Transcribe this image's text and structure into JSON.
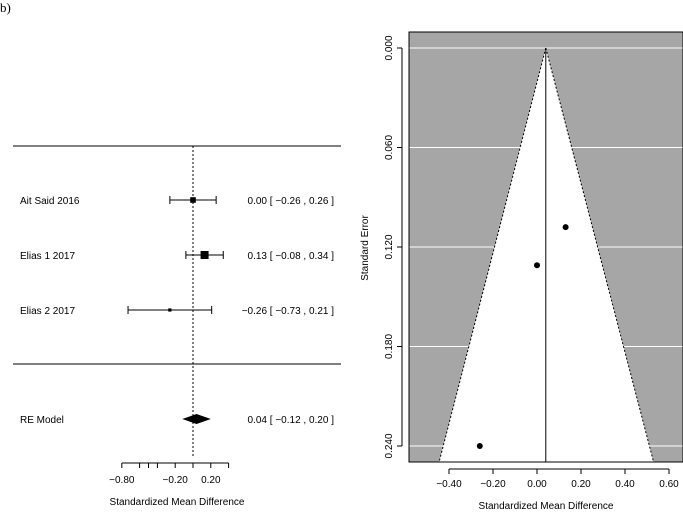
{
  "panel_label": "b)",
  "chart_data": [
    {
      "type": "forest",
      "xlabel": "Standardized Mean Difference",
      "xticks": [
        "−0.80",
        "",
        "",
        "",
        "−0.20",
        "",
        "0.20",
        ""
      ],
      "xtick_values": [
        -0.8,
        -0.6,
        -0.5,
        -0.4,
        -0.2,
        0.0,
        0.2,
        0.3
      ],
      "reference_line": 0.0,
      "studies": [
        {
          "label": "Ait Said  2016",
          "estimate": 0.0,
          "ci": [
            -0.26,
            0.26
          ],
          "ci_text": "0.00 [ −0.26 , 0.26 ]",
          "weight": 0.45
        },
        {
          "label": "Elias 1 2017",
          "estimate": 0.13,
          "ci": [
            -0.08,
            0.34
          ],
          "ci_text": "0.13 [ −0.08 , 0.34 ]",
          "weight": 0.75
        },
        {
          "label": "Elias 2 2017",
          "estimate": -0.26,
          "ci": [
            -0.73,
            0.21
          ],
          "ci_text": "−0.26 [ −0.73 , 0.21 ]",
          "weight": 0.15
        }
      ],
      "summary": {
        "label": "RE Model",
        "estimate": 0.04,
        "ci": [
          -0.12,
          0.2
        ],
        "ci_text": "0.04 [ −0.12 , 0.20 ]"
      }
    },
    {
      "type": "funnel",
      "xlabel": "Standardized Mean Difference",
      "ylabel": "Standard Error",
      "xlim": [
        -0.55,
        0.67
      ],
      "ylim": [
        0.0,
        0.24
      ],
      "xticks": [
        "−0.40",
        "−0.20",
        "0.00",
        "0.20",
        "0.40",
        "0.60"
      ],
      "xtick_values": [
        -0.4,
        -0.2,
        0.0,
        0.2,
        0.4,
        0.6
      ],
      "yticks": [
        "0.000",
        "0.060",
        "0.120",
        "0.180",
        "0.240"
      ],
      "ytick_values": [
        0.0,
        0.06,
        0.12,
        0.18,
        0.24
      ],
      "center": 0.04,
      "points": [
        {
          "x": 0.13,
          "y": 0.108
        },
        {
          "x": 0.0,
          "y": 0.131
        },
        {
          "x": -0.26,
          "y": 0.24
        }
      ],
      "colors": {
        "background": "#a6a6a6",
        "funnel": "#ffffff",
        "grid": "#ffffff"
      }
    }
  ]
}
